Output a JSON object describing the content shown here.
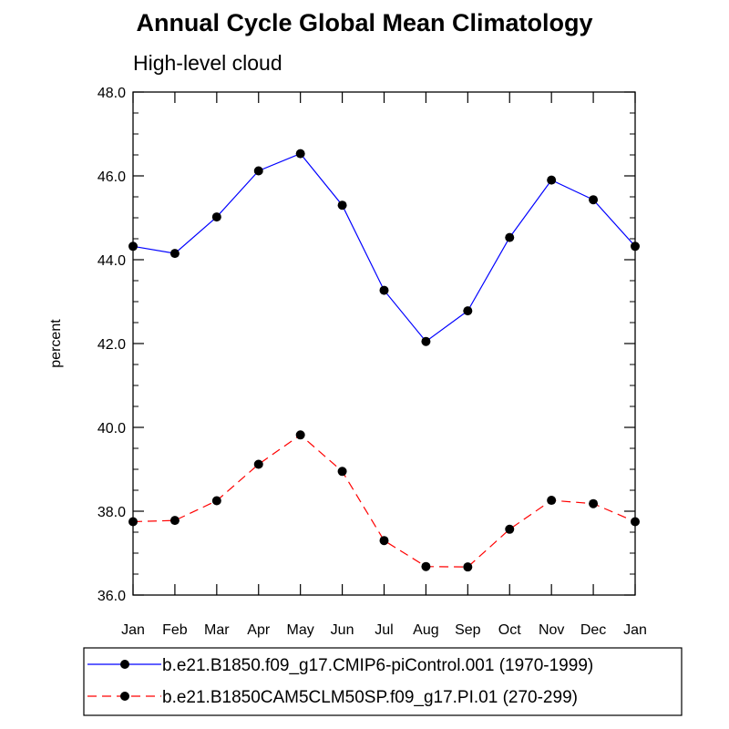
{
  "chart_data": {
    "type": "line",
    "title": "Annual Cycle Global Mean Climatology",
    "subtitle": "High-level cloud",
    "xlabel": "",
    "ylabel": "percent",
    "ylim": [
      36.0,
      48.0
    ],
    "yticks": [
      "36.0",
      "38.0",
      "40.0",
      "42.0",
      "44.0",
      "46.0",
      "48.0"
    ],
    "categories": [
      "Jan",
      "Feb",
      "Mar",
      "Apr",
      "May",
      "Jun",
      "Jul",
      "Aug",
      "Sep",
      "Oct",
      "Nov",
      "Dec",
      "Jan"
    ],
    "series": [
      {
        "name": "b.e21.B1850.f09_g17.CMIP6-piControl.001 (1970-1999)",
        "color": "#0000ff",
        "dashed": false,
        "values": [
          44.32,
          44.15,
          45.02,
          46.12,
          46.53,
          45.3,
          43.27,
          42.05,
          42.78,
          44.53,
          45.9,
          45.43,
          44.32
        ]
      },
      {
        "name": "b.e21.B1850CAM5CLM50SP.f09_g17.PI.01 (270-299)",
        "color": "#ff0000",
        "dashed": true,
        "values": [
          37.75,
          37.78,
          38.25,
          39.12,
          39.82,
          38.95,
          37.3,
          36.68,
          36.67,
          37.57,
          38.26,
          38.18,
          37.75
        ]
      }
    ]
  }
}
